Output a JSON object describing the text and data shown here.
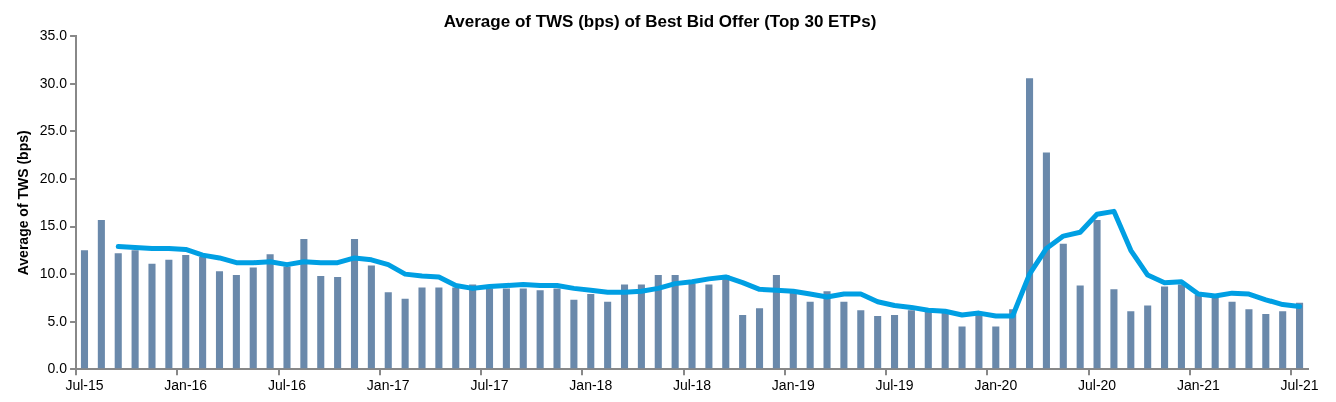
{
  "chart_data": {
    "type": "bar",
    "title": "Average of TWS (bps) of Best Bid Offer (Top 30 ETPs)",
    "ylabel": "Average of TWS (bps)",
    "categories": [
      "Jul-15",
      null,
      null,
      null,
      null,
      null,
      "Jan-16",
      null,
      null,
      null,
      null,
      null,
      "Jul-16",
      null,
      null,
      null,
      null,
      null,
      "Jan-17",
      null,
      null,
      null,
      null,
      null,
      "Jul-17",
      null,
      null,
      null,
      null,
      null,
      "Jan-18",
      null,
      null,
      null,
      null,
      null,
      "Jul-18",
      null,
      null,
      null,
      null,
      null,
      "Jan-19",
      null,
      null,
      null,
      null,
      null,
      "Jul-19",
      null,
      null,
      null,
      null,
      null,
      "Jan-20",
      null,
      null,
      null,
      null,
      null,
      "Jul-20",
      null,
      null,
      null,
      null,
      null,
      "Jan-21",
      null,
      null,
      null,
      null,
      null,
      "Jul-21"
    ],
    "series": [
      {
        "color": "#6a89ab",
        "values": [
          12.5,
          15.7,
          12.2,
          12.5,
          11.1,
          11.5,
          12.0,
          11.8,
          10.3,
          9.9,
          10.7,
          12.1,
          10.8,
          13.7,
          9.8,
          9.7,
          13.7,
          10.9,
          8.1,
          7.4,
          8.6,
          8.6,
          8.6,
          8.9,
          8.5,
          8.5,
          8.5,
          8.3,
          8.5,
          7.3,
          7.9,
          7.1,
          8.9,
          8.9,
          9.9,
          9.9,
          9.0,
          8.9,
          9.9,
          5.7,
          6.4,
          9.9,
          8.2,
          7.1,
          8.2,
          7.1,
          6.2,
          5.6,
          5.7,
          6.2,
          6.1,
          6.0,
          4.5,
          5.8,
          4.5,
          6.3,
          30.6,
          22.8,
          13.2,
          8.8,
          15.7,
          8.4,
          6.1,
          6.7,
          8.7,
          8.9,
          7.8,
          7.7,
          7.1,
          6.3,
          5.8,
          6.1,
          7.0
        ]
      },
      {
        "type": "line",
        "color": "#009fe3",
        "values": [
          null,
          null,
          12.9,
          12.8,
          12.7,
          12.7,
          12.6,
          12.0,
          11.7,
          11.2,
          11.2,
          11.3,
          11.0,
          11.3,
          11.2,
          11.2,
          11.7,
          11.5,
          11.0,
          10.0,
          9.8,
          9.7,
          8.8,
          8.5,
          8.7,
          8.8,
          8.9,
          8.8,
          8.8,
          8.5,
          8.3,
          8.1,
          8.1,
          8.2,
          8.5,
          9.0,
          9.2,
          9.5,
          9.7,
          9.1,
          8.4,
          8.3,
          8.2,
          7.9,
          7.6,
          7.9,
          7.9,
          7.1,
          6.7,
          6.5,
          6.2,
          6.1,
          5.7,
          5.9,
          5.6,
          5.6,
          10.0,
          12.7,
          14.0,
          14.4,
          16.3,
          16.6,
          12.5,
          9.9,
          9.1,
          9.2,
          7.9,
          7.7,
          8.0,
          7.9,
          7.3,
          6.8,
          6.6
        ]
      }
    ],
    "ylim": [
      0,
      35
    ],
    "yticks": [
      {
        "value": 0,
        "label": "0.0"
      },
      {
        "value": 5,
        "label": "5.0"
      },
      {
        "value": 10,
        "label": "10.0"
      },
      {
        "value": 15,
        "label": "15.0"
      },
      {
        "value": 20,
        "label": "20.0"
      },
      {
        "value": 25,
        "label": "25.0"
      },
      {
        "value": 30,
        "label": "30.0"
      },
      {
        "value": 35,
        "label": "35.0"
      }
    ],
    "grid": false,
    "legend": false
  }
}
